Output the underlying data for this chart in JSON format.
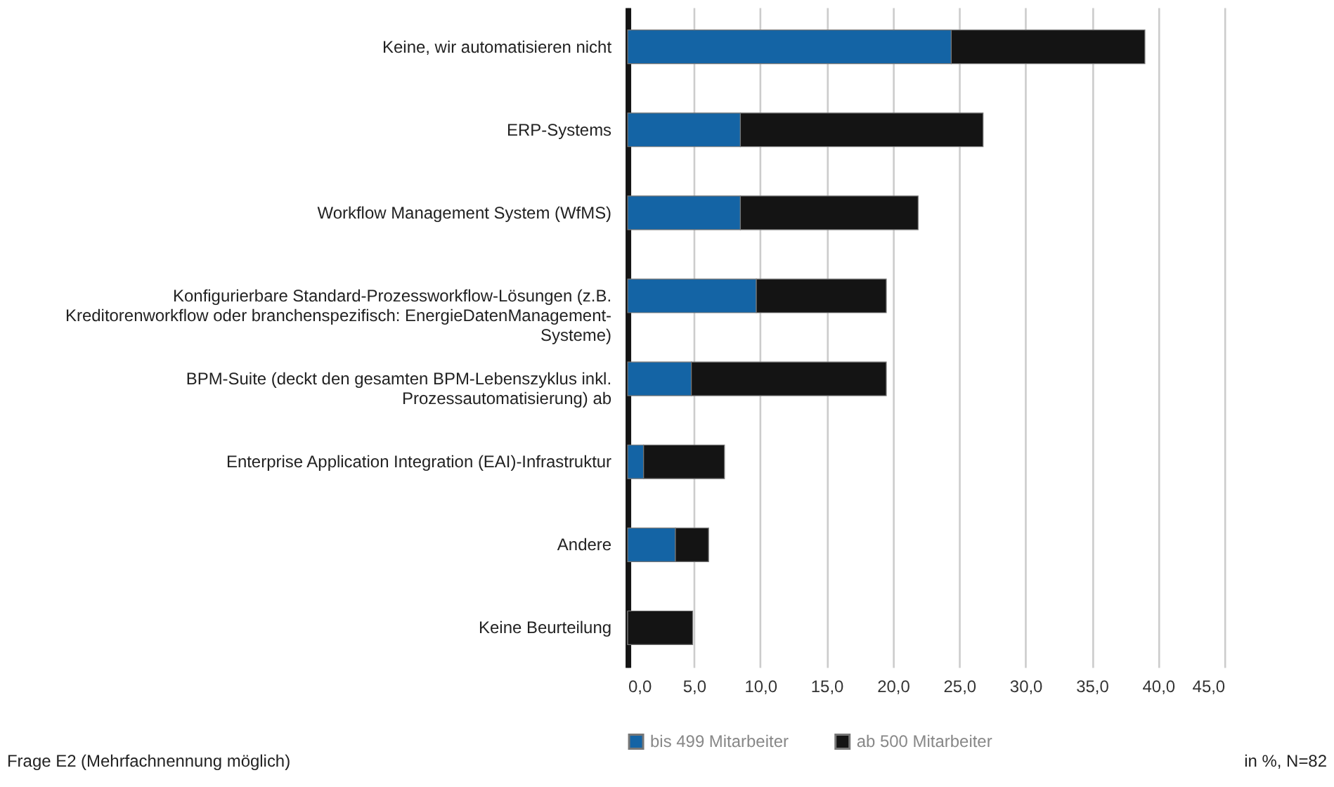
{
  "chart_data": {
    "type": "bar",
    "orientation": "horizontal",
    "stacked": true,
    "categories": [
      "Keine, wir automatisieren nicht",
      "ERP-Systems",
      "Workflow Management System (WfMS)",
      "Konfigurierbare Standard-Prozessworkflow-Lösungen (z.B. Kreditorenworkflow oder branchenspezifisch: EnergieDatenManagement-Systeme)",
      "BPM-Suite (deckt den gesamten BPM-Lebenszyklus inkl. Prozessautomatisierung) ab",
      "Enterprise Application Integration (EAI)-Infrastruktur",
      "Andere",
      "Keine Beurteilung"
    ],
    "series": [
      {
        "name": "bis 499 Mitarbeiter",
        "color": "#1464a5",
        "values": [
          24.4,
          8.5,
          8.5,
          9.7,
          4.8,
          1.2,
          3.6,
          0
        ]
      },
      {
        "name": "ab 500 Mitarbeiter",
        "color": "#141414",
        "values": [
          14.6,
          18.3,
          13.4,
          9.8,
          14.7,
          6.1,
          2.5,
          4.9
        ]
      }
    ],
    "xlim": [
      0,
      45
    ],
    "xticks": [
      {
        "value": 0,
        "label": "0,0"
      },
      {
        "value": 5,
        "label": "5,0"
      },
      {
        "value": 10,
        "label": "10,0"
      },
      {
        "value": 15,
        "label": "15,0"
      },
      {
        "value": 20,
        "label": "20,0"
      },
      {
        "value": 25,
        "label": "25,0"
      },
      {
        "value": 30,
        "label": "30,0"
      },
      {
        "value": 35,
        "label": "35,0"
      },
      {
        "value": 40,
        "label": "40,0"
      },
      {
        "value": 45,
        "label": "45,0"
      }
    ],
    "grid": "x",
    "legend": "bottom",
    "annotations": [
      "Frage E2 (Mehrfachnennung möglich)",
      "in %, N=82"
    ]
  }
}
